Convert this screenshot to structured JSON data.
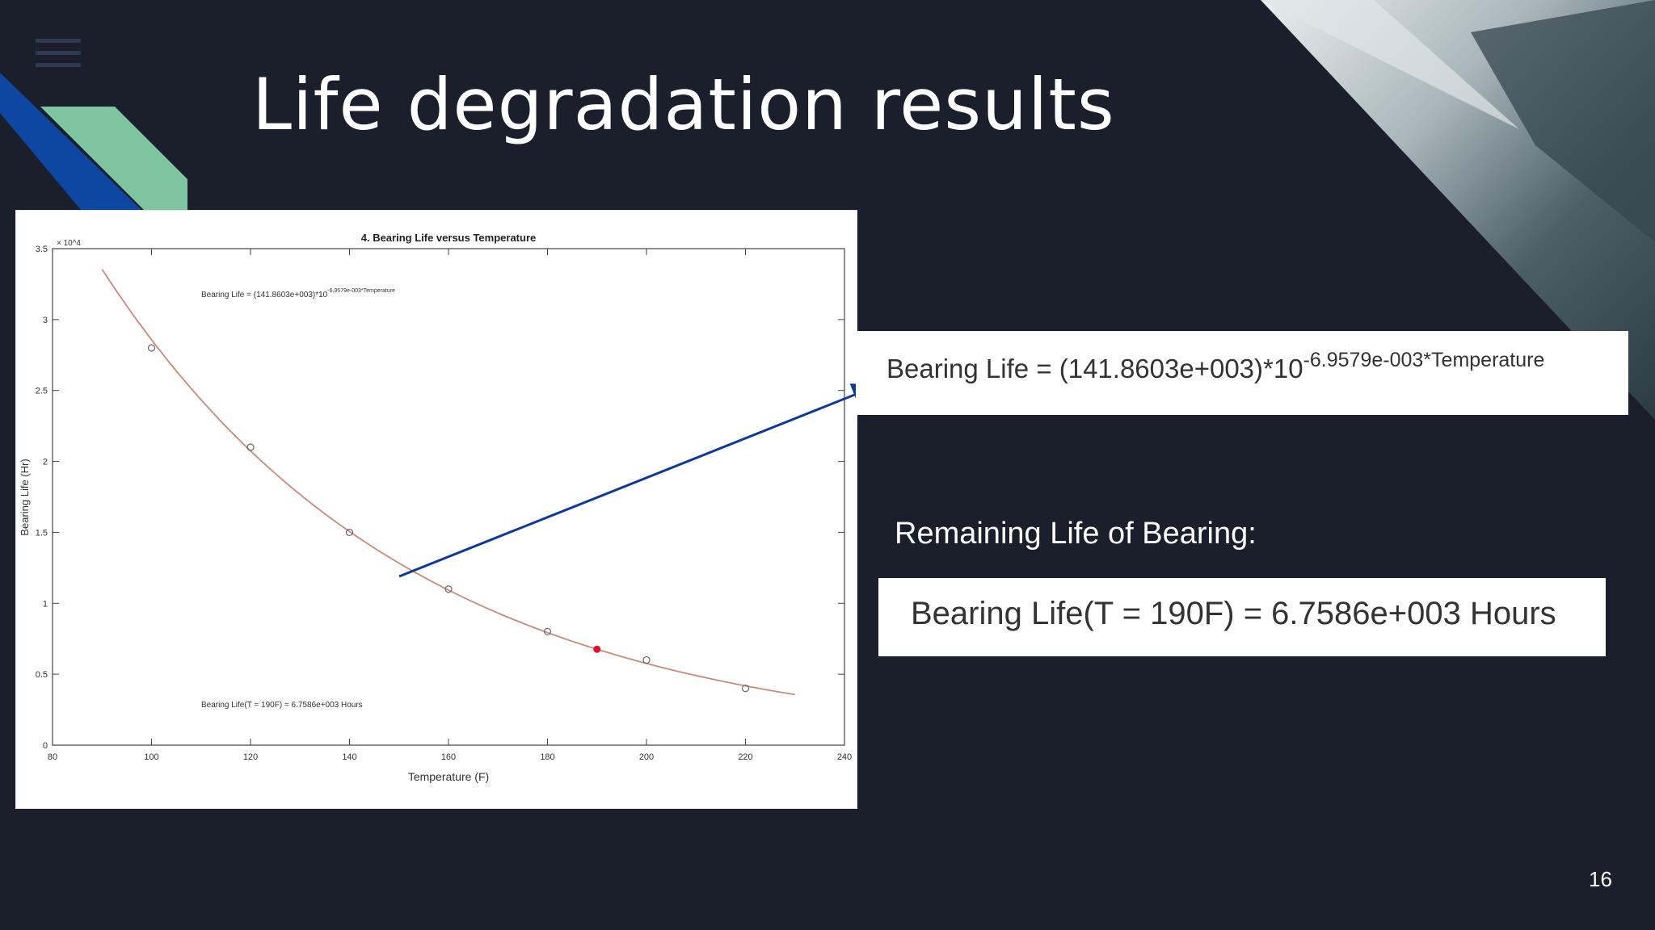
{
  "slide": {
    "title": "Life degradation results",
    "page_number": "16",
    "remaining_life_label": "Remaining Life of Bearing:",
    "equation": {
      "base": "Bearing Life = (141.8603e+003)*10",
      "exponent": "-6.9579e-003*Temperature"
    },
    "result": "Bearing Life(T = 190F) = 6.7586e+003 Hours",
    "colors": {
      "background": "#1b1f2c",
      "accent_blue": "#0d47a1",
      "accent_green": "#7fc4a0",
      "arrow": "#0d3a9a"
    },
    "icons": [
      "menu-icon"
    ]
  },
  "chart_data": {
    "type": "scatter",
    "title": "4. Bearing Life versus Temperature",
    "xlabel": "Temperature (F)",
    "ylabel": "Bearing Life (Hr)",
    "xlim": [
      80,
      240
    ],
    "ylim": [
      0,
      35000
    ],
    "x_ticks": [
      80,
      100,
      120,
      140,
      160,
      180,
      200,
      220,
      240
    ],
    "y_ticks": [
      0,
      5000,
      10000,
      15000,
      20000,
      25000,
      30000,
      35000
    ],
    "y_tick_labels": [
      "0",
      "0.5",
      "1",
      "1.5",
      "2",
      "2.5",
      "3",
      "3.5"
    ],
    "y_multiplier": "× 10^4",
    "grid": false,
    "equation_annotation": {
      "base": "Bearing Life = (141.8603e+003)*10",
      "exponent": "-6.9579e-003*Temperature"
    },
    "result_annotation": "Bearing Life(T = 190F) = 6.7586e+003 Hours",
    "series": [
      {
        "kind": "points",
        "marker": "circle",
        "x": [
          100,
          120,
          140,
          160,
          180,
          200,
          220
        ],
        "y": [
          28000,
          21000,
          15000,
          11000,
          8000,
          6000,
          4000
        ]
      },
      {
        "kind": "fit",
        "equation": "141860.3*10^(-0.0069579*T)",
        "x_range": [
          90,
          230
        ],
        "color": "#c98a7a"
      },
      {
        "kind": "highlight",
        "x": [
          190
        ],
        "y": [
          6758.6
        ],
        "color": "#e0102a"
      }
    ]
  }
}
